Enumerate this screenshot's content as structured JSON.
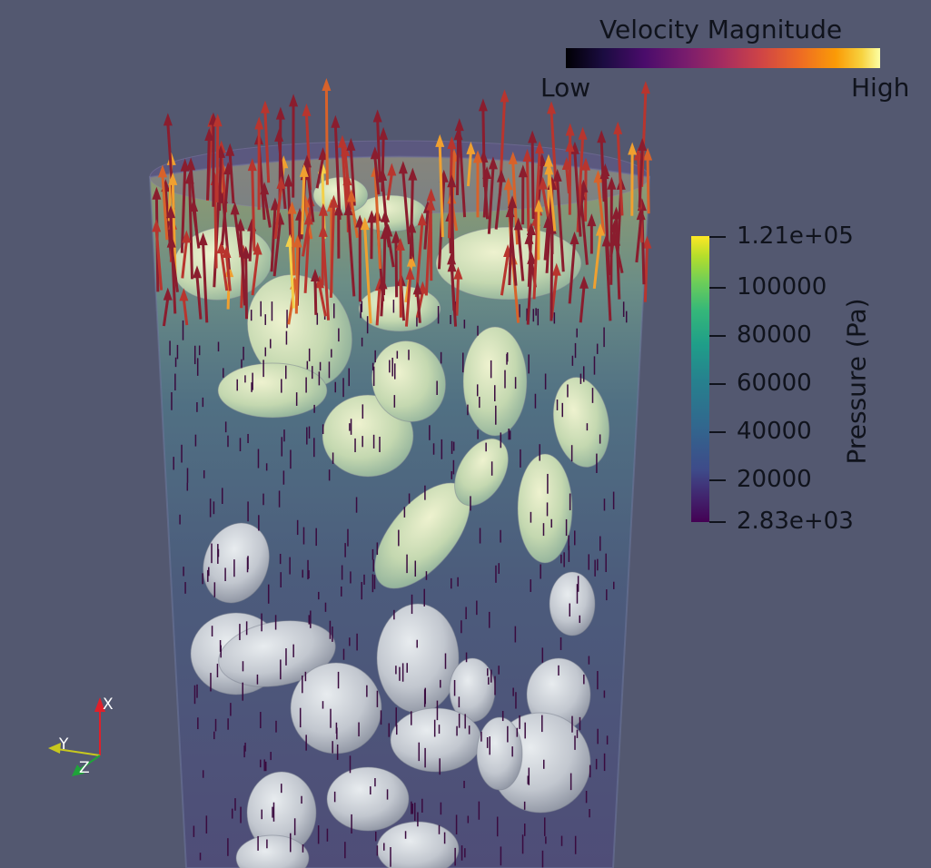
{
  "velocity_legend": {
    "title": "Velocity Magnitude",
    "min_label": "Low",
    "max_label": "High",
    "colormap": [
      "#000004",
      "#4a0c6b",
      "#a52c60",
      "#ed6925",
      "#fcffa4"
    ]
  },
  "pressure_legend": {
    "title": "Pressure (Pa)",
    "max_label": "1.21e+05",
    "min_label": "2.83e+03",
    "min_value": 2830,
    "max_value": 121000,
    "ticks": [
      {
        "label": "100000",
        "value": 100000
      },
      {
        "label": "80000",
        "value": 80000
      },
      {
        "label": "60000",
        "value": 60000
      },
      {
        "label": "40000",
        "value": 40000
      },
      {
        "label": "20000",
        "value": 20000
      }
    ],
    "colormap": [
      "#440154",
      "#31688e",
      "#1f9e89",
      "#6ece58",
      "#fde725"
    ]
  },
  "axes": {
    "x_label": "X",
    "y_label": "Y",
    "z_label": "Z",
    "x_color": "#e0202a",
    "y_color": "#c8c81e",
    "z_color": "#1fa33a"
  },
  "scene": {
    "background": "#535870",
    "particle_color": "#cfd3d8",
    "arrow_colors": [
      "#8a1d2e",
      "#b8352e",
      "#d8622a",
      "#f0a030",
      "#f3d04a",
      "#3a0b3f"
    ]
  }
}
